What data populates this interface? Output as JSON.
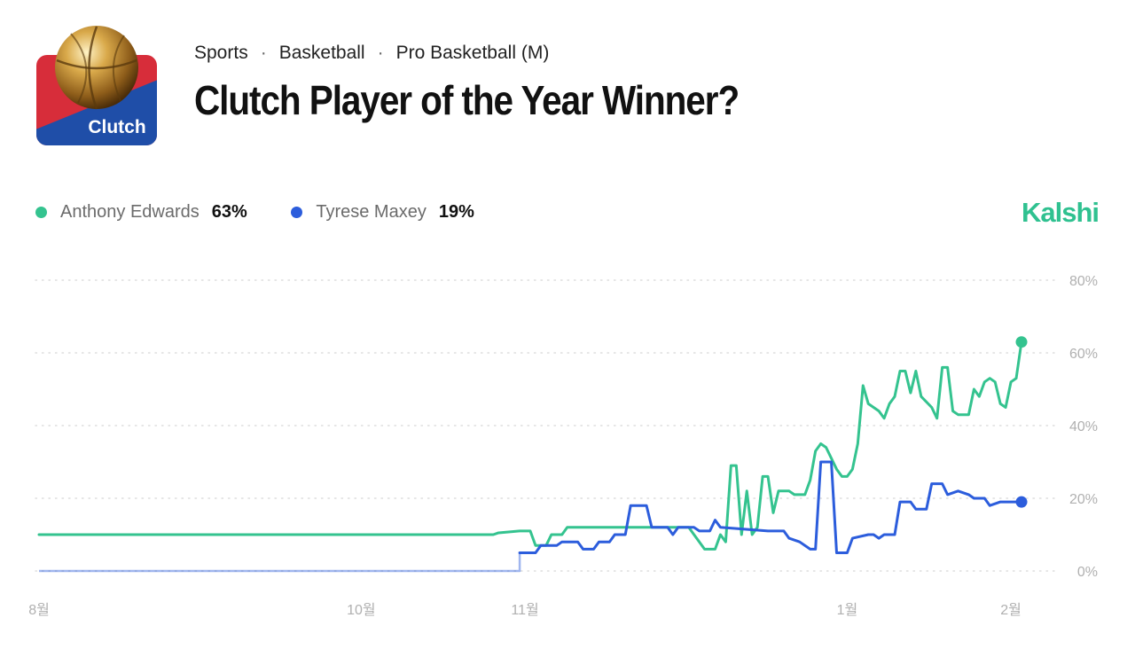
{
  "header": {
    "logo_label": "Clutch",
    "breadcrumb": [
      "Sports",
      "Basketball",
      "Pro Basketball (M)"
    ],
    "separator": "·",
    "title": "Clutch Player of the Year Winner?"
  },
  "legend": [
    {
      "name": "Anthony Edwards",
      "value": "63%",
      "color": "#34c38f"
    },
    {
      "name": "Tyrese Maxey",
      "value": "19%",
      "color": "#2c5ddc"
    }
  ],
  "brand": "Kalshi",
  "chart_data": {
    "type": "line",
    "x_axis": {
      "type": "date",
      "ticks": [
        {
          "date": "2025-08-01",
          "label": "8월"
        },
        {
          "date": "2025-10-01",
          "label": "10월"
        },
        {
          "date": "2025-11-01",
          "label": "11월"
        },
        {
          "date": "2026-01-01",
          "label": "1월"
        },
        {
          "date": "2026-02-01",
          "label": "2월"
        }
      ]
    },
    "xlim": [
      "2025-08-01",
      "2026-02-03"
    ],
    "y_axis": {
      "ticks": [
        "0%",
        "20%",
        "40%",
        "60%",
        "80%"
      ],
      "position": "right"
    },
    "ylim": [
      0,
      80
    ],
    "grid": "horizontal-dotted",
    "series": [
      {
        "name": "Anthony Edwards",
        "color": "#34c38f",
        "points": [
          [
            "2025-08-01",
            10
          ],
          [
            "2025-10-26",
            10
          ],
          [
            "2025-10-27",
            10.5
          ],
          [
            "2025-10-31",
            11
          ],
          [
            "2025-11-02",
            11
          ],
          [
            "2025-11-03",
            7
          ],
          [
            "2025-11-05",
            7
          ],
          [
            "2025-11-06",
            10
          ],
          [
            "2025-11-08",
            10
          ],
          [
            "2025-11-09",
            12
          ],
          [
            "2025-12-02",
            12
          ],
          [
            "2025-12-03",
            10
          ],
          [
            "2025-12-05",
            6
          ],
          [
            "2025-12-07",
            6
          ],
          [
            "2025-12-08",
            10
          ],
          [
            "2025-12-09",
            8
          ],
          [
            "2025-12-10",
            29
          ],
          [
            "2025-12-11",
            29
          ],
          [
            "2025-12-12",
            10
          ],
          [
            "2025-12-13",
            22
          ],
          [
            "2025-12-14",
            10
          ],
          [
            "2025-12-15",
            12
          ],
          [
            "2025-12-16",
            26
          ],
          [
            "2025-12-17",
            26
          ],
          [
            "2025-12-18",
            16
          ],
          [
            "2025-12-19",
            22
          ],
          [
            "2025-12-21",
            22
          ],
          [
            "2025-12-22",
            21
          ],
          [
            "2025-12-24",
            21
          ],
          [
            "2025-12-25",
            25
          ],
          [
            "2025-12-26",
            33
          ],
          [
            "2025-12-27",
            35
          ],
          [
            "2025-12-28",
            34
          ],
          [
            "2025-12-30",
            28
          ],
          [
            "2025-12-31",
            26
          ],
          [
            "2026-01-01",
            26
          ],
          [
            "2026-01-02",
            28
          ],
          [
            "2026-01-03",
            35
          ],
          [
            "2026-01-04",
            51
          ],
          [
            "2026-01-05",
            46
          ],
          [
            "2026-01-07",
            44
          ],
          [
            "2026-01-08",
            42
          ],
          [
            "2026-01-09",
            46
          ],
          [
            "2026-01-10",
            48
          ],
          [
            "2026-01-11",
            55
          ],
          [
            "2026-01-12",
            55
          ],
          [
            "2026-01-13",
            49
          ],
          [
            "2026-01-14",
            55
          ],
          [
            "2026-01-15",
            48
          ],
          [
            "2026-01-17",
            45
          ],
          [
            "2026-01-18",
            42
          ],
          [
            "2026-01-19",
            56
          ],
          [
            "2026-01-20",
            56
          ],
          [
            "2026-01-21",
            44
          ],
          [
            "2026-01-22",
            43
          ],
          [
            "2026-01-24",
            43
          ],
          [
            "2026-01-25",
            50
          ],
          [
            "2026-01-26",
            48
          ],
          [
            "2026-01-27",
            52
          ],
          [
            "2026-01-28",
            53
          ],
          [
            "2026-01-29",
            52
          ],
          [
            "2026-01-30",
            46
          ],
          [
            "2026-01-31",
            45
          ],
          [
            "2026-02-01",
            52
          ],
          [
            "2026-02-02",
            53
          ],
          [
            "2026-02-03",
            63
          ]
        ]
      },
      {
        "name": "Tyrese Maxey",
        "color": "#2c5ddc",
        "points": [
          [
            "2025-08-01",
            0
          ],
          [
            "2025-10-31",
            0
          ],
          [
            "2025-10-31",
            5
          ],
          [
            "2025-11-03",
            5
          ],
          [
            "2025-11-04",
            7
          ],
          [
            "2025-11-07",
            7
          ],
          [
            "2025-11-08",
            8
          ],
          [
            "2025-11-11",
            8
          ],
          [
            "2025-11-12",
            6
          ],
          [
            "2025-11-14",
            6
          ],
          [
            "2025-11-15",
            8
          ],
          [
            "2025-11-17",
            8
          ],
          [
            "2025-11-18",
            10
          ],
          [
            "2025-11-20",
            10
          ],
          [
            "2025-11-21",
            18
          ],
          [
            "2025-11-24",
            18
          ],
          [
            "2025-11-25",
            12
          ],
          [
            "2025-11-28",
            12
          ],
          [
            "2025-11-29",
            10
          ],
          [
            "2025-11-30",
            12
          ],
          [
            "2025-12-03",
            12
          ],
          [
            "2025-12-04",
            11
          ],
          [
            "2025-12-06",
            11
          ],
          [
            "2025-12-07",
            14
          ],
          [
            "2025-12-08",
            12
          ],
          [
            "2025-12-17",
            11
          ],
          [
            "2025-12-20",
            11
          ],
          [
            "2025-12-21",
            9
          ],
          [
            "2025-12-23",
            8
          ],
          [
            "2025-12-25",
            6
          ],
          [
            "2025-12-26",
            6
          ],
          [
            "2025-12-27",
            30
          ],
          [
            "2025-12-29",
            30
          ],
          [
            "2025-12-30",
            5
          ],
          [
            "2026-01-01",
            5
          ],
          [
            "2026-01-02",
            9
          ],
          [
            "2026-01-05",
            10
          ],
          [
            "2026-01-06",
            10
          ],
          [
            "2026-01-07",
            9
          ],
          [
            "2026-01-08",
            10
          ],
          [
            "2026-01-10",
            10
          ],
          [
            "2026-01-11",
            19
          ],
          [
            "2026-01-13",
            19
          ],
          [
            "2026-01-14",
            17
          ],
          [
            "2026-01-16",
            17
          ],
          [
            "2026-01-17",
            24
          ],
          [
            "2026-01-19",
            24
          ],
          [
            "2026-01-20",
            21
          ],
          [
            "2026-01-22",
            22
          ],
          [
            "2026-01-24",
            21
          ],
          [
            "2026-01-25",
            20
          ],
          [
            "2026-01-27",
            20
          ],
          [
            "2026-01-28",
            18
          ],
          [
            "2026-01-30",
            19
          ],
          [
            "2026-02-01",
            19
          ],
          [
            "2026-02-03",
            19
          ]
        ]
      }
    ]
  }
}
